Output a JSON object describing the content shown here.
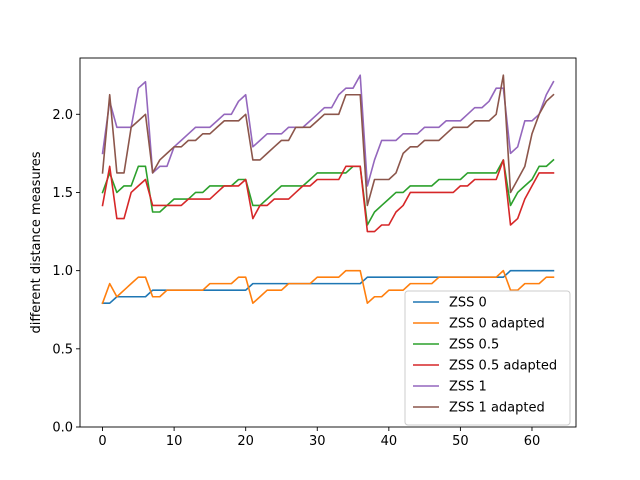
{
  "chart_data": {
    "type": "line",
    "title": "",
    "xlabel": "",
    "ylabel": "different distance measures",
    "xlim": [
      -3.15,
      66.15
    ],
    "ylim": [
      0,
      2.36
    ],
    "xticks": [
      0,
      10,
      20,
      30,
      40,
      50,
      60
    ],
    "yticks": [
      0.0,
      0.5,
      1.0,
      1.5,
      2.0
    ],
    "xtick_labels": [
      "0",
      "10",
      "20",
      "30",
      "40",
      "50",
      "60"
    ],
    "ytick_labels": [
      "0.0",
      "0.5",
      "1.0",
      "1.5",
      "2.0"
    ],
    "grid": false,
    "legend_position": "lower-right",
    "x": [
      0,
      1,
      2,
      3,
      4,
      5,
      6,
      7,
      8,
      9,
      10,
      11,
      12,
      13,
      14,
      15,
      16,
      17,
      18,
      19,
      20,
      21,
      22,
      23,
      24,
      25,
      26,
      27,
      28,
      29,
      30,
      31,
      32,
      33,
      34,
      35,
      36,
      37,
      38,
      39,
      40,
      41,
      42,
      43,
      44,
      45,
      46,
      47,
      48,
      49,
      50,
      51,
      52,
      53,
      54,
      55,
      56,
      57,
      58,
      59,
      60,
      61,
      62,
      63
    ],
    "series": [
      {
        "name": "ZSS 0",
        "color": "#1f77b4",
        "values": [
          0.792,
          0.792,
          0.833,
          0.833,
          0.833,
          0.833,
          0.833,
          0.875,
          0.875,
          0.875,
          0.875,
          0.875,
          0.875,
          0.875,
          0.875,
          0.875,
          0.875,
          0.875,
          0.875,
          0.875,
          0.875,
          0.917,
          0.917,
          0.917,
          0.917,
          0.917,
          0.917,
          0.917,
          0.917,
          0.917,
          0.917,
          0.917,
          0.917,
          0.917,
          0.917,
          0.917,
          0.917,
          0.958,
          0.958,
          0.958,
          0.958,
          0.958,
          0.958,
          0.958,
          0.958,
          0.958,
          0.958,
          0.958,
          0.958,
          0.958,
          0.958,
          0.958,
          0.958,
          0.958,
          0.958,
          0.958,
          0.958,
          1.0,
          1.0,
          1.0,
          1.0,
          1.0,
          1.0,
          1.0
        ]
      },
      {
        "name": "ZSS 0 adapted",
        "color": "#ff7f0e",
        "values": [
          0.792,
          0.917,
          0.833,
          0.875,
          0.917,
          0.958,
          0.958,
          0.833,
          0.833,
          0.875,
          0.875,
          0.875,
          0.875,
          0.875,
          0.875,
          0.917,
          0.917,
          0.917,
          0.917,
          0.958,
          0.958,
          0.792,
          0.833,
          0.875,
          0.875,
          0.875,
          0.917,
          0.917,
          0.917,
          0.917,
          0.958,
          0.958,
          0.958,
          0.958,
          1.0,
          1.0,
          1.0,
          0.792,
          0.833,
          0.833,
          0.875,
          0.875,
          0.875,
          0.917,
          0.917,
          0.917,
          0.917,
          0.958,
          0.958,
          0.958,
          0.958,
          0.958,
          0.958,
          0.958,
          0.958,
          0.958,
          1.0,
          0.875,
          0.875,
          0.917,
          0.917,
          0.917,
          0.958,
          0.958
        ]
      },
      {
        "name": "ZSS 0.5",
        "color": "#2ca02c",
        "values": [
          1.5,
          1.625,
          1.5,
          1.542,
          1.542,
          1.667,
          1.667,
          1.375,
          1.375,
          1.417,
          1.458,
          1.458,
          1.458,
          1.5,
          1.5,
          1.542,
          1.542,
          1.542,
          1.542,
          1.583,
          1.583,
          1.417,
          1.417,
          1.458,
          1.5,
          1.542,
          1.542,
          1.542,
          1.542,
          1.583,
          1.625,
          1.625,
          1.625,
          1.625,
          1.625,
          1.667,
          1.667,
          1.292,
          1.375,
          1.417,
          1.458,
          1.5,
          1.5,
          1.542,
          1.542,
          1.542,
          1.542,
          1.583,
          1.583,
          1.583,
          1.583,
          1.625,
          1.625,
          1.625,
          1.625,
          1.625,
          1.708,
          1.417,
          1.5,
          1.542,
          1.583,
          1.667,
          1.667,
          1.708
        ]
      },
      {
        "name": "ZSS 0.5 adapted",
        "color": "#d62728",
        "values": [
          1.417,
          1.667,
          1.333,
          1.333,
          1.5,
          1.542,
          1.583,
          1.417,
          1.417,
          1.417,
          1.417,
          1.417,
          1.458,
          1.458,
          1.458,
          1.458,
          1.5,
          1.542,
          1.542,
          1.542,
          1.583,
          1.333,
          1.417,
          1.417,
          1.458,
          1.458,
          1.458,
          1.5,
          1.542,
          1.542,
          1.583,
          1.583,
          1.583,
          1.583,
          1.667,
          1.667,
          1.667,
          1.25,
          1.25,
          1.292,
          1.292,
          1.375,
          1.417,
          1.5,
          1.5,
          1.5,
          1.5,
          1.5,
          1.5,
          1.5,
          1.542,
          1.542,
          1.583,
          1.583,
          1.583,
          1.583,
          1.708,
          1.292,
          1.333,
          1.458,
          1.542,
          1.625,
          1.625,
          1.625
        ]
      },
      {
        "name": "ZSS 1",
        "color": "#9467bd",
        "values": [
          1.75,
          2.083,
          1.917,
          1.917,
          1.917,
          2.167,
          2.208,
          1.625,
          1.667,
          1.667,
          1.792,
          1.833,
          1.875,
          1.917,
          1.917,
          1.917,
          1.958,
          2.0,
          2.0,
          2.083,
          2.125,
          1.792,
          1.833,
          1.875,
          1.875,
          1.875,
          1.917,
          1.917,
          1.917,
          1.958,
          2.0,
          2.042,
          2.042,
          2.125,
          2.167,
          2.167,
          2.25,
          1.542,
          1.708,
          1.833,
          1.833,
          1.833,
          1.875,
          1.875,
          1.875,
          1.917,
          1.917,
          1.917,
          1.958,
          1.958,
          1.958,
          2.0,
          2.042,
          2.042,
          2.083,
          2.167,
          2.167,
          1.75,
          1.792,
          1.958,
          1.958,
          2.0,
          2.125,
          2.208
        ]
      },
      {
        "name": "ZSS 1 adapted",
        "color": "#8c564b",
        "values": [
          1.625,
          2.125,
          1.625,
          1.625,
          1.917,
          1.958,
          2.0,
          1.625,
          1.708,
          1.75,
          1.792,
          1.792,
          1.833,
          1.833,
          1.875,
          1.875,
          1.917,
          1.958,
          1.958,
          1.958,
          2.0,
          1.708,
          1.708,
          1.75,
          1.792,
          1.833,
          1.833,
          1.917,
          1.917,
          1.917,
          1.958,
          2.0,
          2.0,
          2.0,
          2.125,
          2.125,
          2.125,
          1.417,
          1.583,
          1.583,
          1.583,
          1.625,
          1.75,
          1.792,
          1.792,
          1.833,
          1.833,
          1.833,
          1.875,
          1.917,
          1.917,
          1.917,
          1.958,
          1.958,
          1.958,
          2.0,
          2.25,
          1.5,
          1.583,
          1.667,
          1.875,
          2.0,
          2.083,
          2.125
        ]
      }
    ]
  }
}
